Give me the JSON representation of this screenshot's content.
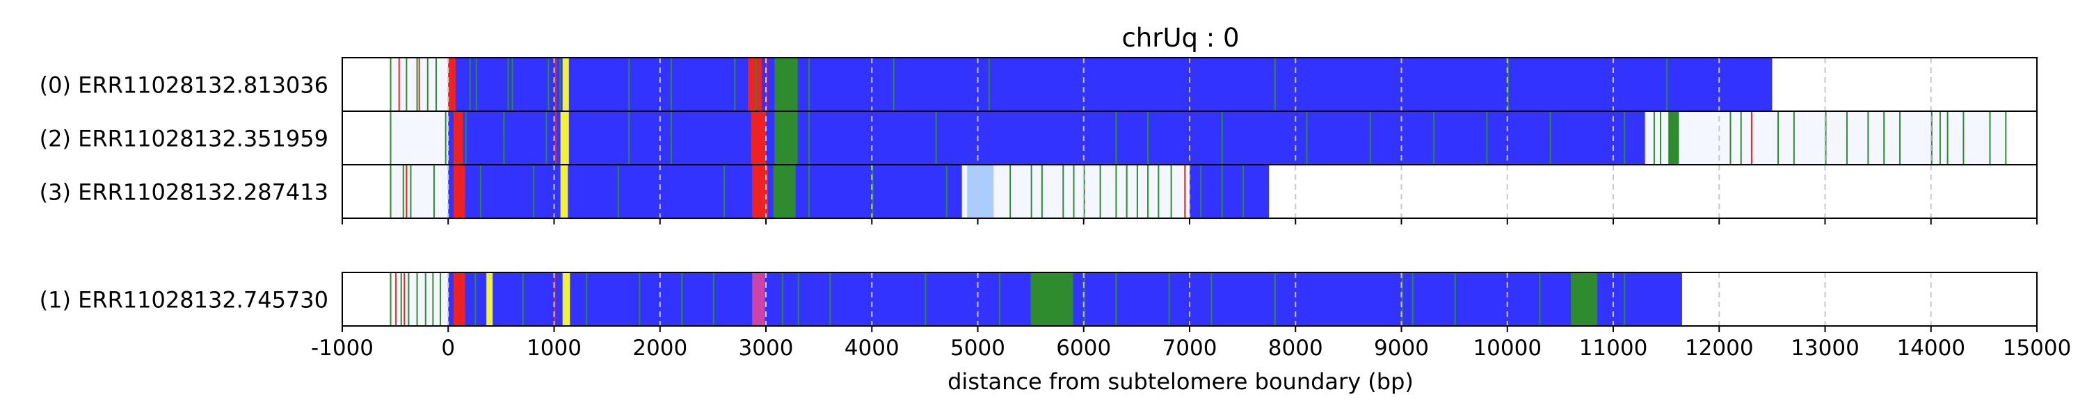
{
  "chart_data": {
    "type": "bar",
    "title": "chrUq : 0",
    "xlabel": "distance from subtelomere boundary (bp)",
    "xlim": [
      -1000,
      15000
    ],
    "xticks": [
      "-1000",
      "0",
      "1000",
      "2000",
      "3000",
      "4000",
      "5000",
      "6000",
      "7000",
      "8000",
      "9000",
      "10000",
      "11000",
      "12000",
      "13000",
      "14000",
      "15000"
    ],
    "grid": "vertical dashed at each x tick",
    "colors": {
      "repeat": "#3333ff",
      "motif_green": "#2e8b2e",
      "motif_red": "#ee2222",
      "motif_yellow": "#f2f23a",
      "motif_magenta": "#cc44aa",
      "light_blue": "#aaccff",
      "grid": "#c8c8c8"
    },
    "groups": [
      {
        "reads": [
          {
            "label": "(0) ERR11028132.813036",
            "start": -550,
            "end": 12500,
            "segments": [
              {
                "start": 0,
                "end": 12500,
                "color": "#3333ff"
              },
              {
                "start": 0,
                "end": 70,
                "color": "#ee2222"
              },
              {
                "start": 1080,
                "end": 1140,
                "color": "#f2f23a"
              },
              {
                "start": 2830,
                "end": 2960,
                "color": "#ee2222"
              },
              {
                "start": 3080,
                "end": 3300,
                "color": "#2e8b2e"
              }
            ],
            "ticks_green": [
              -550,
              -400,
              -300,
              -200,
              -120,
              200,
              260,
              560,
              600,
              940,
              1050,
              1700,
              2100,
              2700,
              2900,
              3400,
              4200,
              5100,
              7800,
              10000,
              11500
            ],
            "ticks_red": [
              -470,
              -280,
              1010,
              3000
            ]
          },
          {
            "label": "(2) ERR11028132.351959",
            "start": -550,
            "end": 14700,
            "segments": [
              {
                "start": 0,
                "end": 11300,
                "color": "#3333ff"
              },
              {
                "start": 50,
                "end": 140,
                "color": "#ee2222"
              },
              {
                "start": 1060,
                "end": 1140,
                "color": "#f2f23a"
              },
              {
                "start": 2860,
                "end": 3000,
                "color": "#ee2222"
              },
              {
                "start": 3080,
                "end": 3300,
                "color": "#2e8b2e"
              },
              {
                "start": 11520,
                "end": 11620,
                "color": "#2e8b2e"
              }
            ],
            "ticks_green": [
              -550,
              -30,
              160,
              520,
              920,
              1700,
              2100,
              3400,
              4600,
              6300,
              6600,
              7300,
              8100,
              8700,
              9300,
              9800,
              10400,
              11100,
              11380,
              11440,
              12100,
              12200,
              12550,
              12700,
              13000,
              13200,
              13400,
              13550,
              13700,
              14000,
              14080,
              14150,
              14300,
              14550,
              14700
            ],
            "ticks_red": [
              1010,
              2950,
              12300
            ]
          },
          {
            "label": "(3) ERR11028132.287413",
            "start": -550,
            "end": 7750,
            "segments": [
              {
                "start": 0,
                "end": 4850,
                "color": "#3333ff"
              },
              {
                "start": 50,
                "end": 160,
                "color": "#ee2222"
              },
              {
                "start": 1060,
                "end": 1130,
                "color": "#f2f23a"
              },
              {
                "start": 2870,
                "end": 3020,
                "color": "#ee2222"
              },
              {
                "start": 3070,
                "end": 3280,
                "color": "#2e8b2e"
              },
              {
                "start": 4900,
                "end": 5150,
                "color": "#aaccff"
              },
              {
                "start": 7000,
                "end": 7750,
                "color": "#3333ff"
              }
            ],
            "ticks_green": [
              -550,
              -430,
              -360,
              -140,
              300,
              800,
              1600,
              2600,
              3400,
              4000,
              4700,
              5300,
              5500,
              5600,
              5800,
              5900,
              6000,
              6150,
              6300,
              6400,
              6500,
              6600,
              6700,
              6820,
              6950,
              7100,
              7300,
              7500
            ],
            "ticks_red": [
              -400,
              6950
            ]
          }
        ]
      },
      {
        "reads": [
          {
            "label": "(1) ERR11028132.745730",
            "start": -550,
            "end": 11650,
            "segments": [
              {
                "start": 0,
                "end": 11650,
                "color": "#3333ff"
              },
              {
                "start": 50,
                "end": 160,
                "color": "#ee2222"
              },
              {
                "start": 360,
                "end": 420,
                "color": "#f2f23a"
              },
              {
                "start": 1080,
                "end": 1150,
                "color": "#f2f23a"
              },
              {
                "start": 2870,
                "end": 2990,
                "color": "#cc44aa"
              },
              {
                "start": 5500,
                "end": 5900,
                "color": "#2e8b2e"
              },
              {
                "start": 10600,
                "end": 10850,
                "color": "#2e8b2e"
              }
            ],
            "ticks_green": [
              -550,
              -450,
              -380,
              -300,
              -220,
              -150,
              -80,
              250,
              700,
              1300,
              1800,
              2200,
              2500,
              3150,
              3300,
              3600,
              4500,
              5200,
              6000,
              6300,
              6800,
              7200,
              7800,
              9000,
              9100,
              9500,
              10300,
              11100
            ],
            "ticks_red": [
              -500,
              -420,
              1000
            ]
          }
        ]
      }
    ]
  }
}
